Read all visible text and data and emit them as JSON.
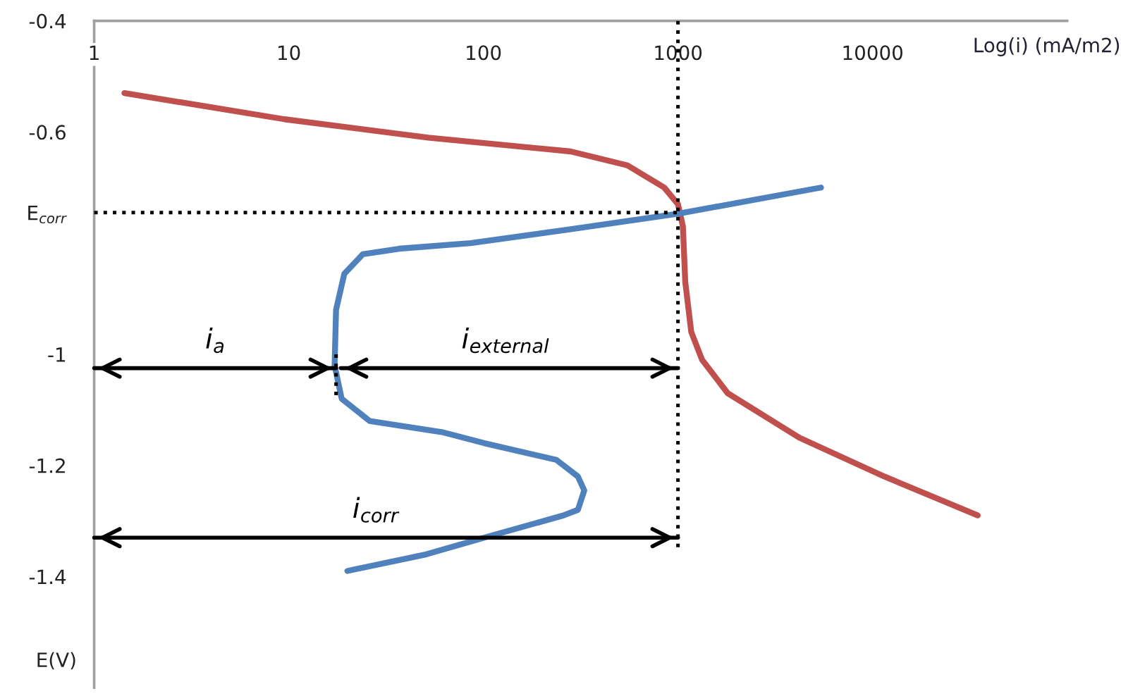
{
  "chart_data": {
    "type": "line",
    "xlabel": "Log(i) (mA/m2)",
    "ylabel": "E(V)",
    "log": "x",
    "xlim": [
      1,
      100000
    ],
    "xticks": [
      1,
      10,
      100,
      1000,
      10000
    ],
    "ylim": [
      -1.6,
      -0.4
    ],
    "yticks": [
      -0.4,
      -0.6,
      {
        "value": -0.745,
        "label": "E$_{corr}$"
      },
      -1,
      -1.2,
      -1.4
    ],
    "grid": false,
    "series": [
      {
        "color": "#c0504d",
        "x": [
          1.43,
          9.5,
          52,
          281,
          550,
          850,
          1000,
          1060,
          1090,
          1170,
          1330,
          1800,
          4200,
          11500,
          34700
        ],
        "values": [
          -0.53,
          -0.577,
          -0.61,
          -0.635,
          -0.66,
          -0.7,
          -0.73,
          -0.77,
          -0.87,
          -0.96,
          -1.01,
          -1.07,
          -1.15,
          -1.22,
          -1.29
        ]
      },
      {
        "color": "#4f81bd",
        "x": [
          5430,
          1000,
          281,
          86,
          37,
          24,
          19.3,
          17.5,
          17.2,
          18.7,
          26,
          61,
          101,
          237,
          306,
          330,
          306,
          258,
          101,
          51,
          20
        ],
        "values": [
          -0.7,
          -0.747,
          -0.775,
          -0.8,
          -0.81,
          -0.82,
          -0.855,
          -0.92,
          -1.02,
          -1.08,
          -1.12,
          -1.14,
          -1.16,
          -1.19,
          -1.22,
          -1.245,
          -1.28,
          -1.29,
          -1.33,
          -1.36,
          -1.39
        ]
      },
      {
        "color": "#000000",
        "line_style": "dotted",
        "x": [
          1,
          1000
        ],
        "values": [
          -0.745,
          -0.745
        ]
      },
      {
        "color": "#000000",
        "line_style": "dotted",
        "x": [
          1000,
          1000
        ],
        "values": [
          -0.4,
          -1.35
        ]
      },
      {
        "color": "#000000",
        "line_style": "dotted",
        "x": [
          17.5,
          17.5
        ],
        "values": [
          -1.0,
          -1.08
        ]
      },
      {
        "color": "#000000",
        "line_style": "solid",
        "x": [
          1,
          17.5
        ],
        "values": [
          -1.025,
          -1.025
        ]
      },
      {
        "color": "#000000",
        "line_style": "solid",
        "x": [
          18.5,
          1000
        ],
        "values": [
          -1.025,
          -1.025
        ]
      },
      {
        "color": "#000000",
        "line_style": "solid",
        "x": [
          1,
          1000
        ],
        "values": [
          -1.33,
          -1.33
        ]
      }
    ],
    "annotations": [
      {
        "text": "i$_{a}$",
        "x": 4.2,
        "y": -1.025
      },
      {
        "text": "i$_{external}$",
        "x": 130,
        "y": -1.025
      },
      {
        "text": "i$_{corr}$",
        "x": 28,
        "y": -1.33
      }
    ]
  }
}
